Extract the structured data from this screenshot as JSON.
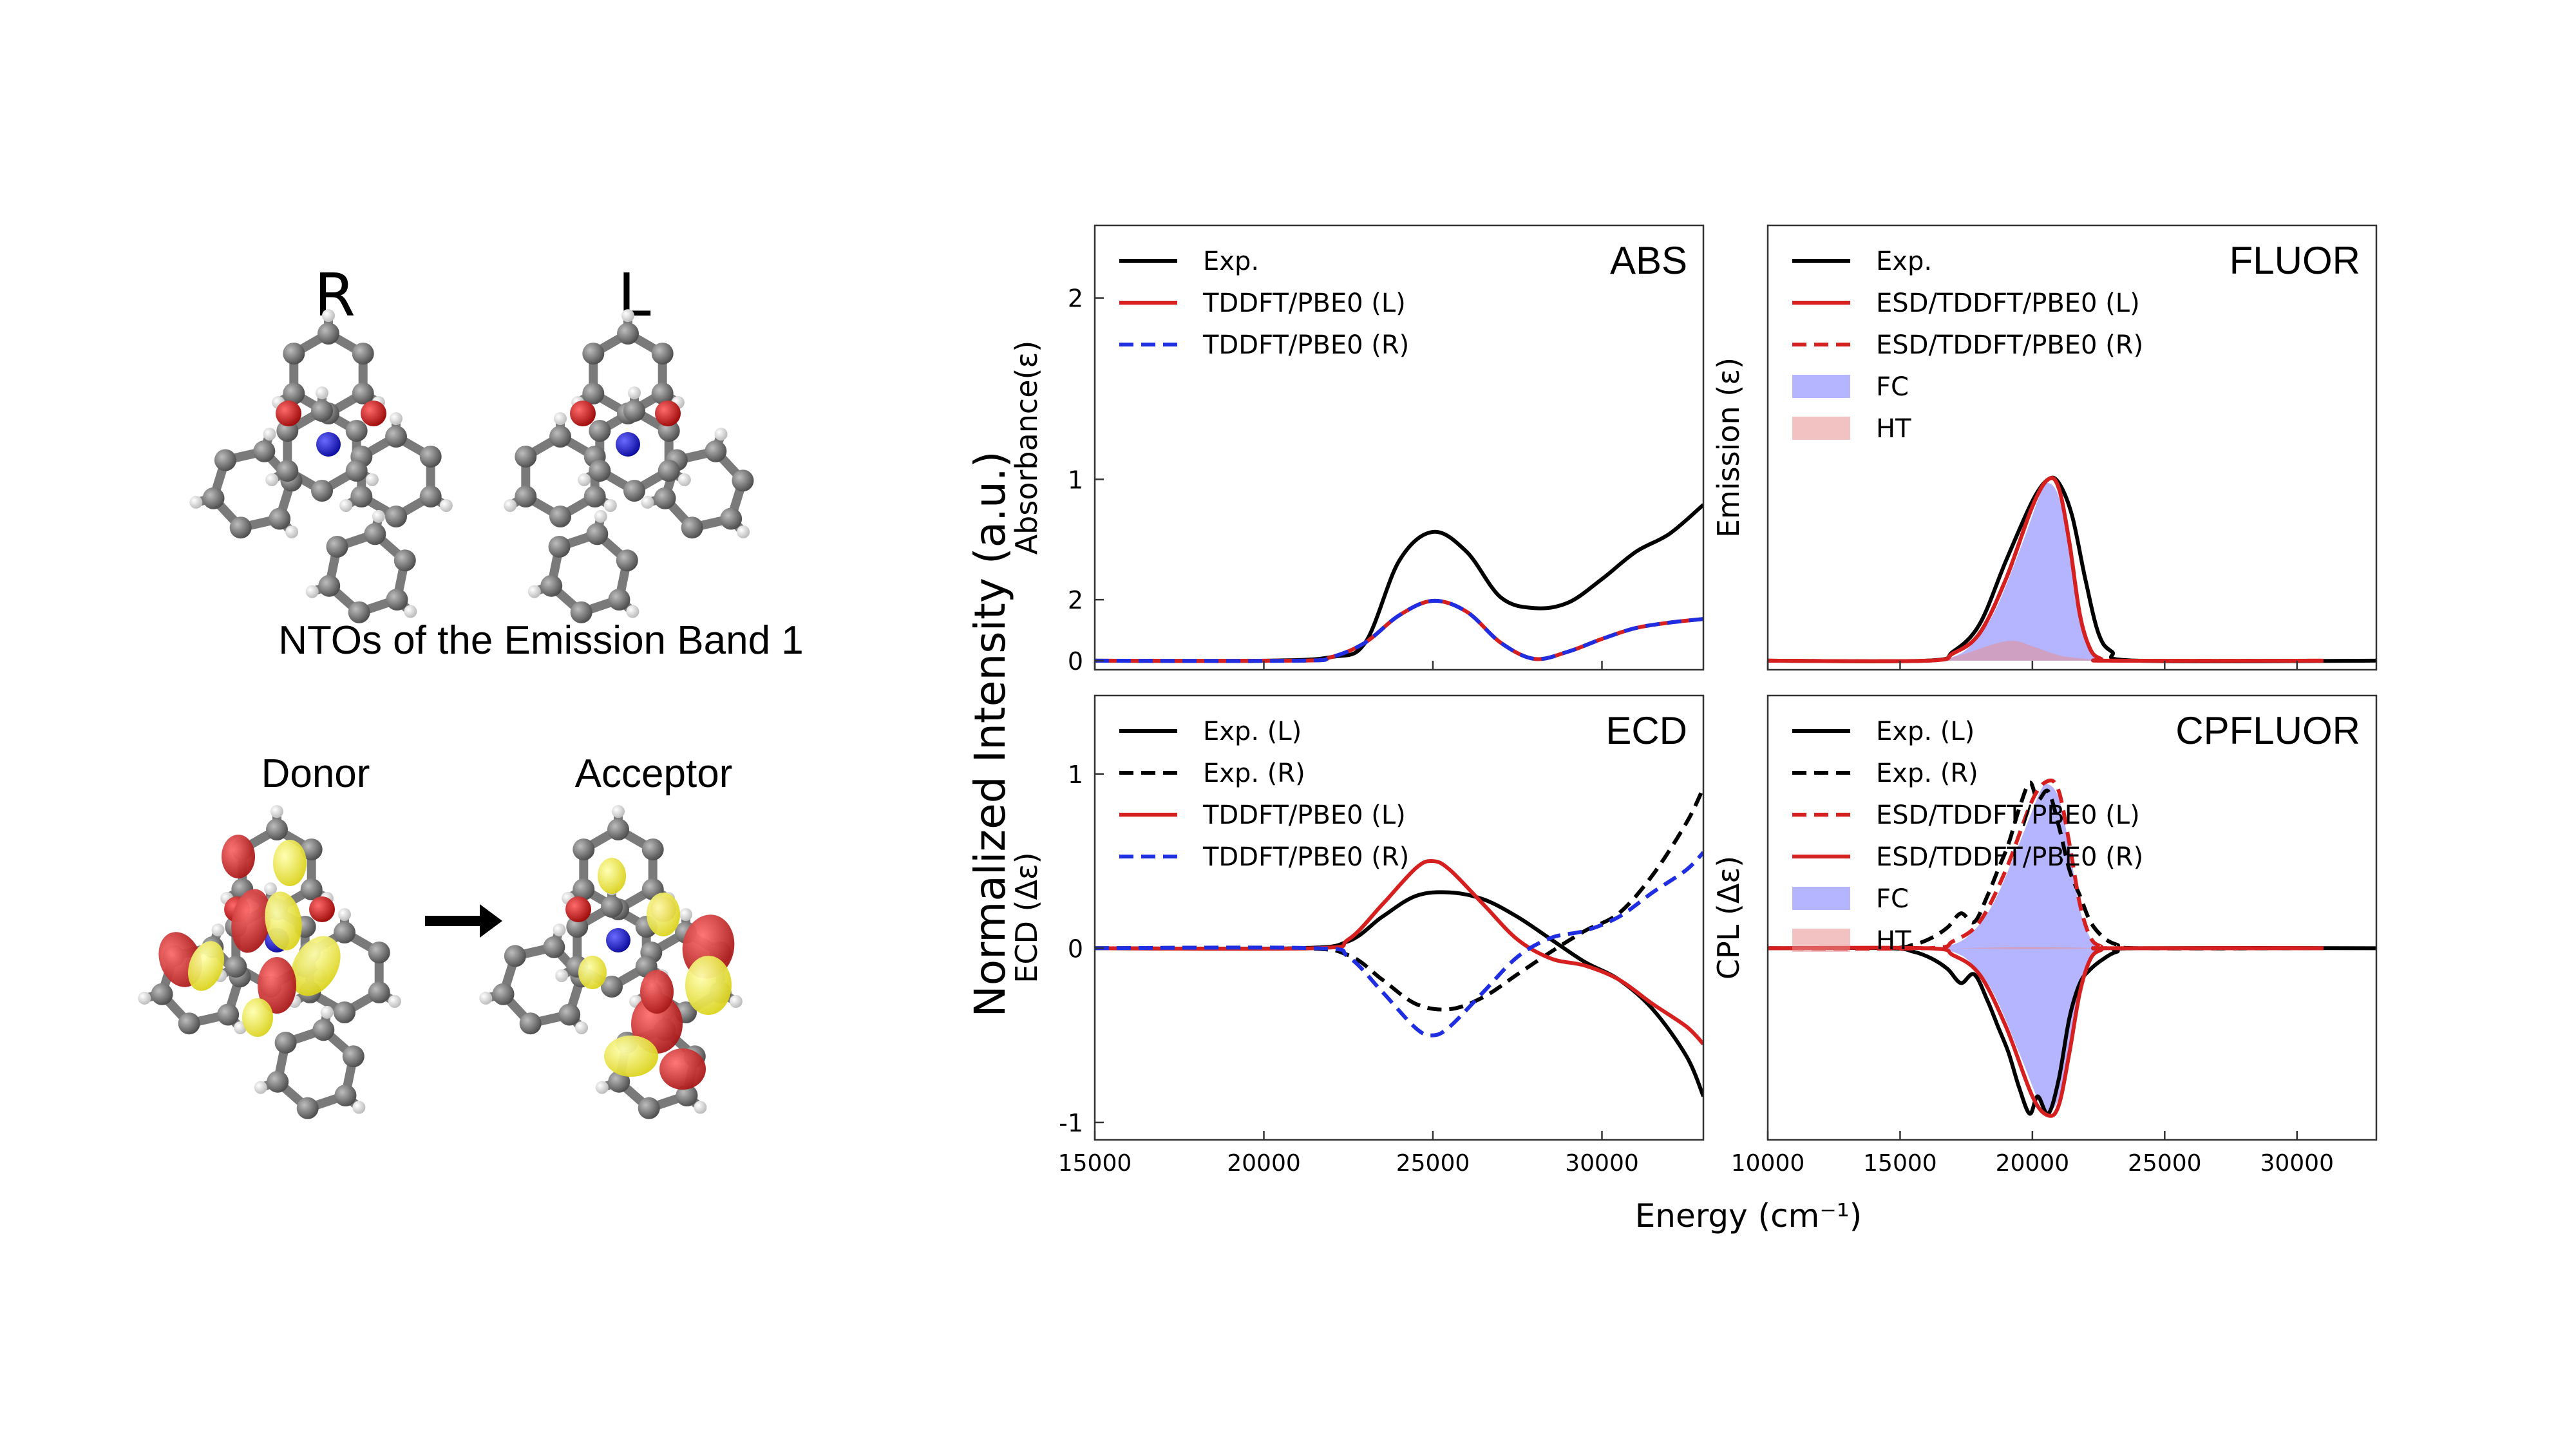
{
  "left_panel": {
    "enantiomer_labels": [
      "R",
      "L"
    ],
    "nto_title": "NTOs of the Emission Band 1",
    "donor_label": "Donor",
    "acceptor_label": "Acceptor"
  },
  "figure": {
    "shared_ylabel": "Normalized Intensity (a.u.)",
    "shared_xlabel": "Energy (cm⁻¹)"
  },
  "colors": {
    "exp": "#000000",
    "red": "#d62020",
    "blue": "#1f2ee0",
    "fc_fill": "#7777ff",
    "ht_fill": "#e89090",
    "carbon": "#6a6a6a",
    "oxygen": "#cc1111",
    "nitrogen": "#1a1acc",
    "hydrogen": "#f2f2f2",
    "orbital_red": "#cc2222",
    "orbital_yellow": "#f2f03a"
  },
  "chart_data": [
    {
      "id": "abs",
      "type": "line",
      "title": "ABS",
      "ylabel": "Absorbance(ε)",
      "xlim": [
        15000,
        33000
      ],
      "ylim": [
        -0.05,
        2.4
      ],
      "yticks": [
        "0",
        "1",
        "2"
      ],
      "xticks": [],
      "legend": [
        {
          "label": "Exp.",
          "style": "solid",
          "color": "#000000"
        },
        {
          "label": "TDDFT/PBE0 (L)",
          "style": "solid",
          "color": "#d62020"
        },
        {
          "label": "TDDFT/PBE0 (R)",
          "style": "dashed",
          "color": "#1f2ee0"
        }
      ],
      "series": [
        {
          "name": "Exp.",
          "style": "solid",
          "color": "#000000",
          "x": [
            15000,
            20000,
            22000,
            23000,
            24000,
            25000,
            26000,
            27000,
            28000,
            29000,
            30000,
            31000,
            32000,
            33000
          ],
          "y": [
            0.0,
            0.0,
            0.02,
            0.1,
            0.55,
            0.71,
            0.6,
            0.35,
            0.29,
            0.32,
            0.45,
            0.6,
            0.7,
            0.86
          ]
        },
        {
          "name": "TDDFT/PBE0 (L)",
          "style": "solid",
          "color": "#d62020",
          "x": [
            15000,
            21000,
            22000,
            23000,
            24000,
            25000,
            26000,
            27000,
            28000,
            29000,
            30000,
            31000,
            32000,
            33000
          ],
          "y": [
            0.0,
            0.0,
            0.02,
            0.1,
            0.25,
            0.33,
            0.27,
            0.1,
            0.01,
            0.05,
            0.12,
            0.18,
            0.21,
            0.23
          ]
        },
        {
          "name": "TDDFT/PBE0 (R)",
          "style": "dashed",
          "color": "#1f2ee0",
          "x": [
            15000,
            21000,
            22000,
            23000,
            24000,
            25000,
            26000,
            27000,
            28000,
            29000,
            30000,
            31000,
            32000,
            33000
          ],
          "y": [
            0.0,
            0.0,
            0.02,
            0.1,
            0.25,
            0.33,
            0.27,
            0.1,
            0.01,
            0.05,
            0.12,
            0.18,
            0.21,
            0.23
          ]
        }
      ]
    },
    {
      "id": "fluor",
      "type": "line",
      "title": "FLUOR",
      "ylabel": "Emission (ε)",
      "xlim": [
        10000,
        33000
      ],
      "ylim": [
        -0.05,
        2.4
      ],
      "yticks": [],
      "xticks": [],
      "legend": [
        {
          "label": "Exp.",
          "style": "solid",
          "color": "#000000"
        },
        {
          "label": "ESD/TDDFT/PBE0 (L)",
          "style": "solid",
          "color": "#d62020"
        },
        {
          "label": "ESD/TDDFT/PBE0 (R)",
          "style": "dashed",
          "color": "#d62020"
        },
        {
          "label": "FC",
          "style": "fill",
          "color": "#7777ff"
        },
        {
          "label": "HT",
          "style": "fill",
          "color": "#e89090"
        }
      ],
      "series": [
        {
          "name": "Exp.",
          "style": "solid",
          "color": "#000000",
          "x": [
            10000,
            16000,
            17000,
            18000,
            19000,
            20000,
            20600,
            21000,
            21500,
            22000,
            22500,
            23000,
            24000,
            33000
          ],
          "y": [
            0.0,
            0.0,
            0.05,
            0.2,
            0.55,
            0.88,
            1.0,
            0.98,
            0.8,
            0.45,
            0.15,
            0.05,
            0.0,
            0.0
          ]
        },
        {
          "name": "ESD/TDDFT/PBE0 (L)",
          "style": "solid",
          "color": "#d62020",
          "x": [
            10000,
            16000,
            17000,
            18000,
            19000,
            20000,
            20600,
            21000,
            21400,
            21800,
            22200,
            22600,
            23000,
            31000
          ],
          "y": [
            0.0,
            0.0,
            0.04,
            0.15,
            0.45,
            0.85,
            1.0,
            0.95,
            0.65,
            0.25,
            0.06,
            0.01,
            0.0,
            0.0
          ]
        },
        {
          "name": "ESD/TDDFT/PBE0 (R)",
          "style": "dashed",
          "color": "#d62020",
          "x": [
            10000,
            16000,
            17000,
            18000,
            19000,
            20000,
            20600,
            21000,
            21400,
            21800,
            22200,
            22600,
            23000,
            31000
          ],
          "y": [
            0.0,
            0.0,
            0.04,
            0.15,
            0.45,
            0.85,
            1.0,
            0.95,
            0.65,
            0.25,
            0.06,
            0.01,
            0.0,
            0.0
          ]
        }
      ],
      "fills": [
        {
          "name": "FC",
          "color": "#7777ff",
          "x": [
            16500,
            17500,
            18500,
            19500,
            20300,
            20600,
            21000,
            21400,
            21800,
            22300,
            22700
          ],
          "y": [
            0.0,
            0.06,
            0.25,
            0.6,
            0.92,
            0.98,
            0.9,
            0.6,
            0.22,
            0.03,
            0.0
          ]
        },
        {
          "name": "HT",
          "color": "#e89090",
          "x": [
            16500,
            17500,
            18500,
            19300,
            20000,
            21000,
            22000,
            22700
          ],
          "y": [
            0.0,
            0.04,
            0.09,
            0.11,
            0.08,
            0.03,
            0.01,
            0.0
          ]
        }
      ]
    },
    {
      "id": "ecd",
      "type": "line",
      "title": "ECD",
      "ylabel": "ECD (Δε)",
      "xlim": [
        15000,
        33000
      ],
      "ylim": [
        -1.1,
        1.45
      ],
      "yticks": [
        "-1",
        "0",
        "1",
        "2"
      ],
      "xticks": [
        "15000",
        "20000",
        "25000",
        "30000"
      ],
      "legend": [
        {
          "label": "Exp. (L)",
          "style": "solid",
          "color": "#000000"
        },
        {
          "label": "Exp. (R)",
          "style": "dashed",
          "color": "#000000"
        },
        {
          "label": "TDDFT/PBE0 (L)",
          "style": "solid",
          "color": "#d62020"
        },
        {
          "label": "TDDFT/PBE0 (R)",
          "style": "dashed",
          "color": "#1f2ee0"
        }
      ],
      "series": [
        {
          "name": "Exp. (L)",
          "style": "solid",
          "color": "#000000",
          "x": [
            15000,
            21000,
            22500,
            23500,
            24500,
            25500,
            26500,
            27500,
            28500,
            29500,
            30500,
            31500,
            32500,
            33000
          ],
          "y": [
            0.0,
            0.0,
            0.04,
            0.18,
            0.3,
            0.32,
            0.28,
            0.18,
            0.05,
            -0.08,
            -0.18,
            -0.35,
            -0.62,
            -0.85
          ]
        },
        {
          "name": "Exp. (R)",
          "style": "dashed",
          "color": "#000000",
          "x": [
            15000,
            21000,
            22500,
            23500,
            24500,
            25500,
            26500,
            27500,
            28500,
            29500,
            30500,
            31500,
            32500,
            33000
          ],
          "y": [
            0.0,
            0.0,
            -0.04,
            -0.18,
            -0.32,
            -0.35,
            -0.28,
            -0.15,
            -0.02,
            0.1,
            0.2,
            0.42,
            0.72,
            0.92
          ]
        },
        {
          "name": "TDDFT/PBE0 (L)",
          "style": "solid",
          "color": "#d62020",
          "x": [
            15000,
            21500,
            22500,
            23500,
            24500,
            25000,
            25500,
            26500,
            27500,
            28500,
            29500,
            30500,
            31500,
            32500,
            33000
          ],
          "y": [
            0.0,
            0.0,
            0.05,
            0.25,
            0.46,
            0.5,
            0.45,
            0.25,
            0.05,
            -0.06,
            -0.1,
            -0.18,
            -0.32,
            -0.45,
            -0.55
          ]
        },
        {
          "name": "TDDFT/PBE0 (R)",
          "style": "dashed",
          "color": "#1f2ee0",
          "x": [
            15000,
            21500,
            22500,
            23500,
            24500,
            25000,
            25500,
            26500,
            27500,
            28500,
            29500,
            30500,
            31500,
            32500,
            33000
          ],
          "y": [
            0.0,
            0.0,
            -0.05,
            -0.25,
            -0.46,
            -0.5,
            -0.45,
            -0.25,
            -0.05,
            0.06,
            0.1,
            0.18,
            0.32,
            0.45,
            0.55
          ]
        }
      ]
    },
    {
      "id": "cpfluor",
      "type": "line",
      "title": "CPFLUOR",
      "ylabel": "CPL (Δε)",
      "xlim": [
        10000,
        33000
      ],
      "ylim": [
        -1.1,
        1.45
      ],
      "yticks": [],
      "xticks": [
        "10000",
        "15000",
        "20000",
        "25000",
        "30000"
      ],
      "legend": [
        {
          "label": "Exp. (L)",
          "style": "solid",
          "color": "#000000"
        },
        {
          "label": "Exp. (R)",
          "style": "dashed",
          "color": "#000000"
        },
        {
          "label": "ESD/TDDFT/PBE0 (L)",
          "style": "dashed",
          "color": "#d62020"
        },
        {
          "label": "ESD/TDDFT/PBE0 (R)",
          "style": "solid",
          "color": "#d62020"
        },
        {
          "label": "FC",
          "style": "fill",
          "color": "#7777ff"
        },
        {
          "label": "HT",
          "style": "fill",
          "color": "#e89090"
        }
      ],
      "series": [
        {
          "name": "Exp. (L)",
          "style": "solid",
          "color": "#000000",
          "x": [
            10000,
            14500,
            15500,
            16200,
            16800,
            17300,
            17800,
            18300,
            18700,
            19100,
            19500,
            19900,
            20200,
            20600,
            21000,
            21400,
            21800,
            22200,
            22700,
            23200,
            24000,
            33000
          ],
          "y": [
            0.0,
            0.0,
            -0.02,
            -0.06,
            -0.12,
            -0.2,
            -0.15,
            -0.3,
            -0.45,
            -0.6,
            -0.8,
            -0.95,
            -0.85,
            -0.95,
            -0.75,
            -0.4,
            -0.2,
            -0.12,
            -0.06,
            -0.02,
            0.0,
            0.0
          ]
        },
        {
          "name": "Exp. (R)",
          "style": "dashed",
          "color": "#000000",
          "x": [
            10000,
            14500,
            15500,
            16200,
            16800,
            17300,
            17800,
            18300,
            18700,
            19100,
            19500,
            19900,
            20200,
            20600,
            21000,
            21400,
            21800,
            22200,
            22700,
            23200,
            24000,
            31000
          ],
          "y": [
            0.0,
            0.0,
            0.02,
            0.06,
            0.12,
            0.2,
            0.15,
            0.3,
            0.45,
            0.6,
            0.8,
            0.95,
            0.85,
            0.9,
            0.7,
            0.45,
            0.3,
            0.15,
            0.06,
            0.02,
            0.0,
            0.0
          ]
        },
        {
          "name": "ESD/TDDFT/PBE0 (L)",
          "style": "dashed",
          "color": "#d62020",
          "x": [
            10000,
            16000,
            17000,
            18000,
            19000,
            20000,
            20600,
            21000,
            21400,
            21800,
            22200,
            22600,
            23000,
            31000
          ],
          "y": [
            0.0,
            0.0,
            0.04,
            0.15,
            0.45,
            0.85,
            0.96,
            0.9,
            0.6,
            0.25,
            0.06,
            0.01,
            0.0,
            0.0
          ]
        },
        {
          "name": "ESD/TDDFT/PBE0 (R)",
          "style": "solid",
          "color": "#d62020",
          "x": [
            10000,
            16000,
            17000,
            18000,
            19000,
            20000,
            20600,
            21000,
            21400,
            21800,
            22200,
            22600,
            23000,
            31000
          ],
          "y": [
            0.0,
            0.0,
            -0.04,
            -0.15,
            -0.45,
            -0.85,
            -0.96,
            -0.9,
            -0.6,
            -0.25,
            -0.06,
            -0.01,
            0.0,
            0.0
          ]
        }
      ],
      "fills": [
        {
          "name": "FC",
          "color": "#7777ff",
          "mirror": true,
          "x": [
            16500,
            17500,
            18500,
            19500,
            20300,
            20600,
            21000,
            21400,
            21800,
            22300,
            22700
          ],
          "y": [
            0.0,
            0.06,
            0.25,
            0.6,
            0.9,
            0.94,
            0.86,
            0.58,
            0.22,
            0.03,
            0.0
          ]
        },
        {
          "name": "HT",
          "color": "#e89090",
          "mirror": true,
          "x": [
            17000,
            19000,
            20000,
            21500,
            22500
          ],
          "y": [
            0.0,
            0.005,
            0.006,
            0.004,
            0.0
          ]
        }
      ]
    }
  ]
}
